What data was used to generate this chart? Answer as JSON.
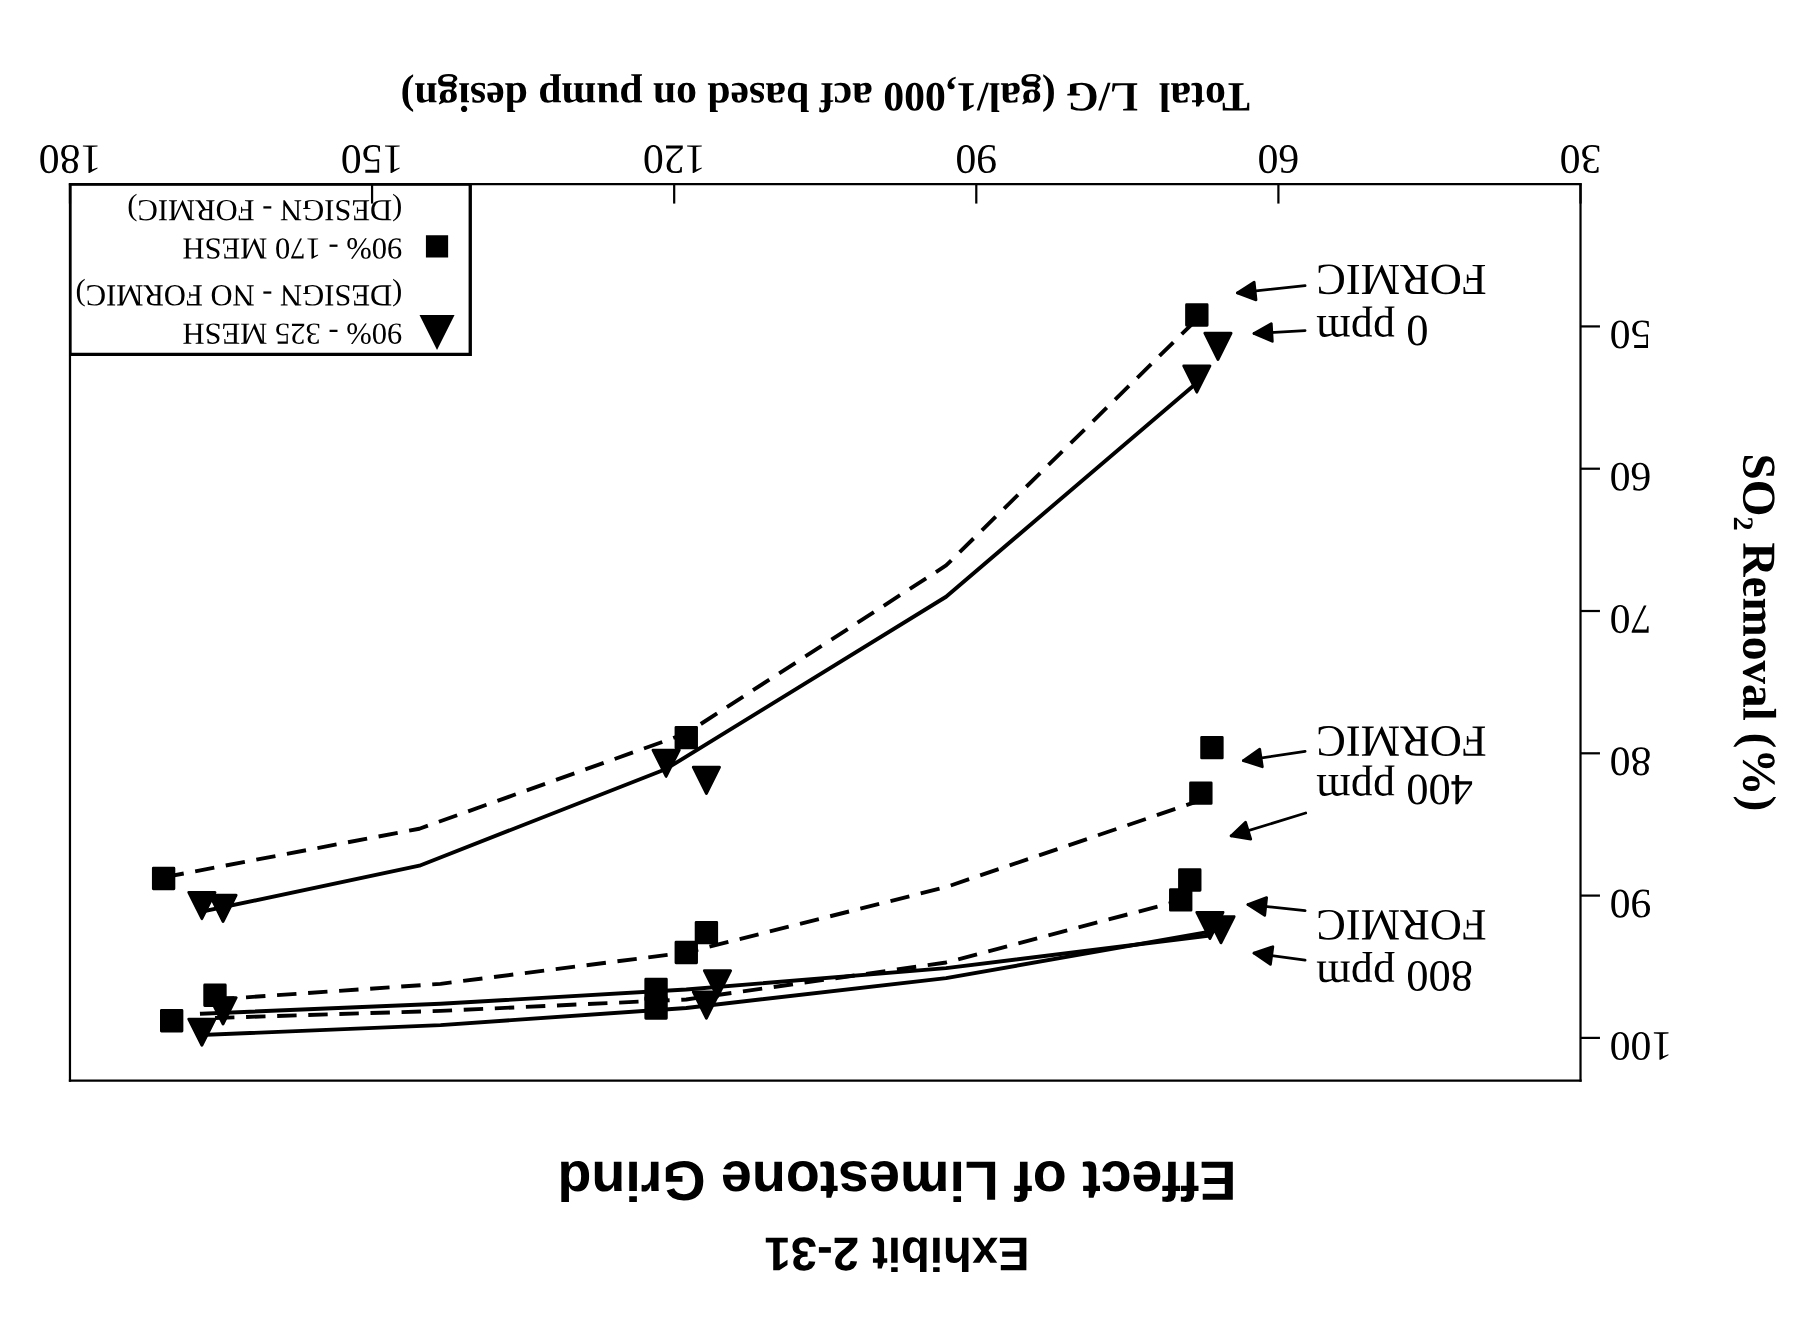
{
  "chart_data": {
    "type": "scatter",
    "title": "Exhibit 2-31",
    "subtitle": "Effect of Limestone Grind",
    "xlabel": "Total  L/G (gal/1,000 acf based on pump design)",
    "ylabel": "SO₂ Removal (%)",
    "xlim": [
      180,
      30
    ],
    "xticks": [
      30,
      60,
      90,
      120,
      150,
      180
    ],
    "ylim": [
      103,
      40
    ],
    "yticks": [
      50,
      60,
      70,
      80,
      90,
      100
    ],
    "grid": false,
    "legend": "top left",
    "series": [
      {
        "name": "90% - 325 MESH\n(DESIGN - NO FORMIC)",
        "marker": "triangle",
        "color": "#000000",
        "x": [
          66.0,
          68.1,
          120.8,
          116.8,
          166.9,
          164.8,
          66.8,
          65.7,
          115.7,
          116.8,
          164.8,
          166.9
        ],
        "values": [
          51.4,
          53.7,
          80.7,
          81.9,
          90.7,
          90.9,
          92.1,
          92.4,
          96.2,
          97.7,
          98.1,
          99.6
        ]
      },
      {
        "name": "90% - 170 MESH\n(DESIGN - FORMIC)",
        "marker": "square",
        "color": "#000000",
        "x": [
          68.1,
          118.8,
          170.7,
          66.6,
          67.7,
          116.8,
          118.8,
          165.6,
          68.8,
          69.7,
          121.8,
          121.8,
          169.9
        ],
        "values": [
          49.2,
          78.9,
          88.8,
          79.6,
          82.8,
          92.6,
          94.0,
          97.0,
          88.9,
          90.3,
          96.6,
          97.9,
          98.8
        ]
      },
      {
        "type": "line",
        "line_style": "dashed",
        "marker": "none",
        "color": "#000000",
        "x": [
          170.6,
          145.3,
          118.8,
          93.0,
          68.1
        ],
        "values": [
          88.7,
          85.3,
          78.6,
          66.8,
          49.5
        ]
      },
      {
        "type": "line",
        "line_style": "solid",
        "marker": "none",
        "color": "#000000",
        "x": [
          166.7,
          145.3,
          120.8,
          93.0,
          68.0
        ],
        "values": [
          91.1,
          87.9,
          81.1,
          69.0,
          53.9
        ]
      },
      {
        "type": "line",
        "line_style": "dashed",
        "marker": "none",
        "color": "#000000",
        "x": [
          165.6,
          143.2,
          118.8,
          93.0,
          67.3
        ],
        "values": [
          97.3,
          96.2,
          94.0,
          89.4,
          83.2
        ]
      },
      {
        "type": "line",
        "line_style": "solid",
        "marker": "none",
        "color": "#000000",
        "x": [
          166.9,
          143.2,
          118.8,
          93.0,
          66.8
        ],
        "values": [
          98.3,
          97.6,
          96.6,
          95.1,
          92.8
        ]
      },
      {
        "type": "line",
        "line_style": "dashed",
        "marker": "none",
        "color": "#000000",
        "x": [
          165.6,
          143.2,
          118.8,
          93.0,
          69.5
        ],
        "values": [
          98.6,
          98.1,
          97.3,
          94.7,
          90.3
        ]
      },
      {
        "type": "line",
        "line_style": "solid",
        "marker": "none",
        "color": "#000000",
        "x": [
          166.9,
          143.2,
          118.8,
          93.0,
          65.7
        ],
        "values": [
          99.8,
          99.1,
          97.9,
          95.8,
          92.4
        ]
      }
    ],
    "annotations": [
      "0 ppm",
      "FORMIC",
      "400 ppm",
      "FORMIC",
      "800 ppm",
      "FORMIC"
    ]
  }
}
